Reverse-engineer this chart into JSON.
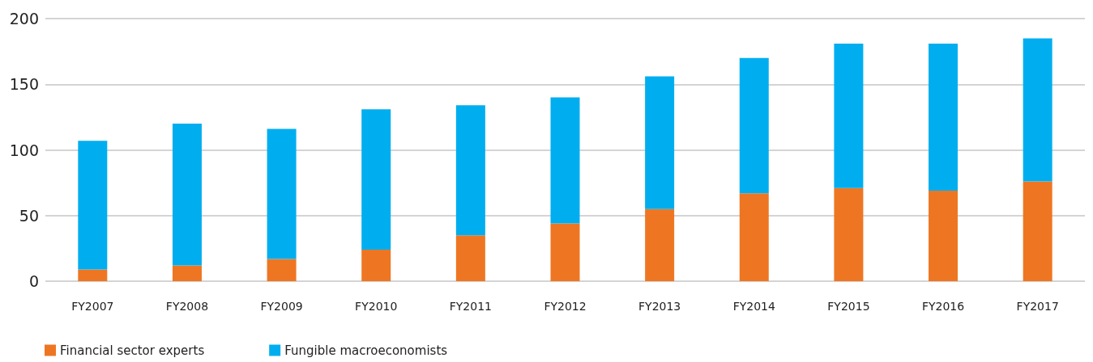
{
  "chart_data": {
    "type": "bar",
    "stacked": true,
    "categories": [
      "FY2007",
      "FY2008",
      "FY2009",
      "FY2010",
      "FY2011",
      "FY2012",
      "FY2013",
      "FY2014",
      "FY2015",
      "FY2016",
      "FY2017"
    ],
    "series": [
      {
        "name": "Financial sector experts",
        "color": "#ee7623",
        "values": [
          9,
          12,
          17,
          24,
          35,
          44,
          55,
          67,
          71,
          69,
          76
        ]
      },
      {
        "name": "Fungible macroeconomists",
        "color": "#00aeef",
        "values": [
          98,
          108,
          99,
          107,
          99,
          96,
          101,
          103,
          110,
          112,
          109
        ]
      }
    ],
    "ylim": [
      0,
      200
    ],
    "yticks": [
      0,
      50,
      100,
      150,
      200
    ],
    "grid": "y",
    "legend": "bottom left"
  }
}
